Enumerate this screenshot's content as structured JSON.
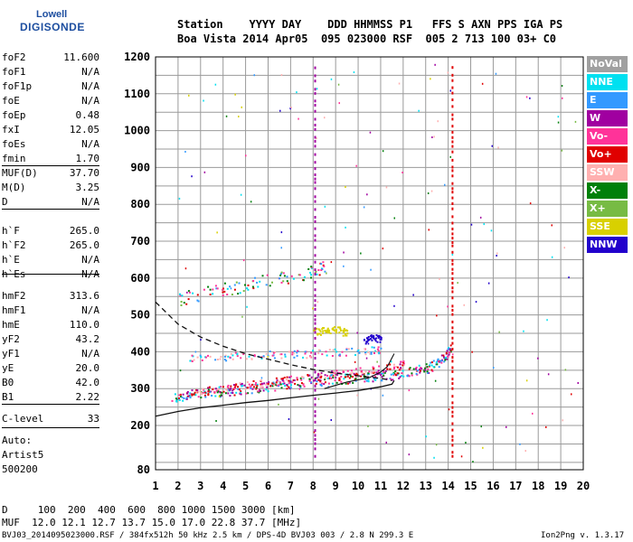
{
  "logo": {
    "top": "Lowell",
    "bottom": "DIGISONDE"
  },
  "header": {
    "line1": "Station    YYYY DAY    DDD HHMMSS P1   FFS S AXN PPS IGA PS",
    "line2": "Boa Vista 2014 Apr05  095 023000 RSF  005 2 713 100 03+ C0"
  },
  "params_group1": [
    {
      "name": "foF2",
      "value": "11.600"
    },
    {
      "name": "foF1",
      "value": "N/A"
    },
    {
      "name": "foF1p",
      "value": "N/A"
    },
    {
      "name": "foE",
      "value": "N/A"
    },
    {
      "name": "foEp",
      "value": "0.48"
    },
    {
      "name": "fxI",
      "value": "12.05"
    },
    {
      "name": "foEs",
      "value": "N/A"
    },
    {
      "name": "fmin",
      "value": "1.70"
    }
  ],
  "params_group2": [
    {
      "name": "MUF(D)",
      "value": "37.70"
    },
    {
      "name": "M(D)",
      "value": "3.25"
    },
    {
      "name": "D",
      "value": "N/A"
    }
  ],
  "params_group3": [
    {
      "name": "h`F",
      "value": "265.0"
    },
    {
      "name": "h`F2",
      "value": "265.0"
    },
    {
      "name": "h`E",
      "value": "N/A"
    },
    {
      "name": "h`Es",
      "value": "N/A"
    }
  ],
  "params_group4": [
    {
      "name": "hmF2",
      "value": "313.6"
    },
    {
      "name": "hmF1",
      "value": "N/A"
    },
    {
      "name": "hmE",
      "value": "110.0"
    },
    {
      "name": "yF2",
      "value": "43.2"
    },
    {
      "name": "yF1",
      "value": "N/A"
    },
    {
      "name": "yE",
      "value": "20.0"
    },
    {
      "name": "B0",
      "value": "42.0"
    },
    {
      "name": "B1",
      "value": "2.22"
    }
  ],
  "params_group5": [
    {
      "name": "C-level",
      "value": "33"
    }
  ],
  "auto": {
    "label": "Auto:",
    "artist": "Artist5",
    "version": "500200"
  },
  "legend": [
    {
      "label": "NoVal",
      "color": "#a0a0a0"
    },
    {
      "label": "NNE",
      "color": "#00e0f0"
    },
    {
      "label": "E",
      "color": "#3399ff"
    },
    {
      "label": "W",
      "color": "#a000a0"
    },
    {
      "label": "Vo-",
      "color": "#ff3399"
    },
    {
      "label": "Vo+",
      "color": "#e00000"
    },
    {
      "label": "SSW",
      "color": "#ffb0b0"
    },
    {
      "label": "X-",
      "color": "#00800a"
    },
    {
      "label": "X+",
      "color": "#77bb44"
    },
    {
      "label": "SSE",
      "color": "#d8d000"
    },
    {
      "label": "NNW",
      "color": "#2200cc"
    }
  ],
  "bottom_table": {
    "d_line": "D     100  200  400  600  800 1000 1500 3000 [km]",
    "muf_line": "MUF  12.0 12.1 12.7 13.7 15.0 17.0 22.8 37.7 [MHz]"
  },
  "footer": {
    "left": "BVJ03_2014095023000.RSF / 384fx512h 50 kHz 2.5 km / DPS-4D BVJ03 003 / 2.8 N 299.3 E",
    "right": "Ion2Png v. 1.3.17"
  },
  "chart_data": {
    "type": "scatter",
    "xlim": [
      1,
      20
    ],
    "ylim": [
      80,
      1200
    ],
    "x_ticks": [
      1,
      2,
      3,
      4,
      5,
      6,
      7,
      8,
      9,
      10,
      11,
      12,
      13,
      14,
      15,
      16,
      17,
      18,
      19,
      20
    ],
    "y_ticks": [
      80,
      100,
      200,
      300,
      400,
      500,
      600,
      700,
      800,
      900,
      1000,
      1100,
      1200
    ],
    "y_tick_labels": [
      "80",
      "",
      "200",
      "300",
      "400",
      "500",
      "600",
      "700",
      "800",
      "900",
      "1000",
      "1100",
      "1200"
    ],
    "grid": true,
    "traces": [
      {
        "name": "O-trace F2",
        "x": [
          1.7,
          2.5,
          3.5,
          4.5,
          5.5,
          6.5,
          7.5,
          8.5,
          9.5,
          10.5,
          11.5,
          12.5,
          13.2,
          13.8,
          14.1
        ],
        "y": [
          275,
          285,
          292,
          298,
          305,
          312,
          318,
          325,
          330,
          335,
          340,
          348,
          360,
          385,
          410
        ]
      },
      {
        "name": "X-trace F2",
        "x": [
          2.5,
          3.5,
          4.5,
          5.5,
          6.5,
          7.5,
          8.5,
          9.5,
          10.5,
          11.5,
          12.0
        ],
        "y": [
          285,
          300,
          308,
          315,
          322,
          330,
          338,
          345,
          352,
          360,
          368
        ]
      },
      {
        "name": "Multiple 2F",
        "x": [
          2.0,
          3.0,
          4.0,
          5.0,
          6.0,
          7.0,
          8.0,
          8.5
        ],
        "y": [
          545,
          558,
          570,
          582,
          595,
          607,
          620,
          630
        ]
      },
      {
        "name": "Upper echo band",
        "x": [
          2.5,
          3.5,
          4.5,
          5.5,
          6.5,
          7.5,
          8.5,
          9.5,
          10.5,
          11.0
        ],
        "y": [
          385,
          385,
          390,
          392,
          395,
          395,
          398,
          402,
          405,
          408
        ]
      },
      {
        "name": "Es cluster",
        "x": [
          8.0,
          8.5,
          9.0,
          9.5
        ],
        "y": [
          455,
          458,
          462,
          452
        ]
      },
      {
        "name": "NNW cluster",
        "x": [
          10.2,
          10.6,
          11.0
        ],
        "y": [
          430,
          440,
          435
        ]
      }
    ],
    "profile_solid": {
      "x": [
        1.0,
        2.0,
        3.0,
        4.0,
        5.0,
        6.0,
        7.0,
        8.0,
        9.0,
        10.0,
        11.0,
        11.5,
        11.6
      ],
      "y": [
        225,
        238,
        248,
        255,
        262,
        268,
        275,
        282,
        288,
        295,
        305,
        312,
        322
      ]
    },
    "profile_loop": {
      "x": [
        8.5,
        9.5,
        10.5,
        11.0,
        11.3,
        11.6
      ],
      "y": [
        300,
        318,
        330,
        345,
        360,
        395
      ]
    },
    "profile_dashed": {
      "x": [
        1.0,
        2.0,
        3.0,
        4.0,
        5.0,
        6.0,
        7.0,
        8.0,
        9.0,
        10.0,
        11.0,
        11.5
      ],
      "y": [
        535,
        475,
        440,
        415,
        395,
        380,
        365,
        352,
        342,
        335,
        328,
        322
      ]
    }
  }
}
